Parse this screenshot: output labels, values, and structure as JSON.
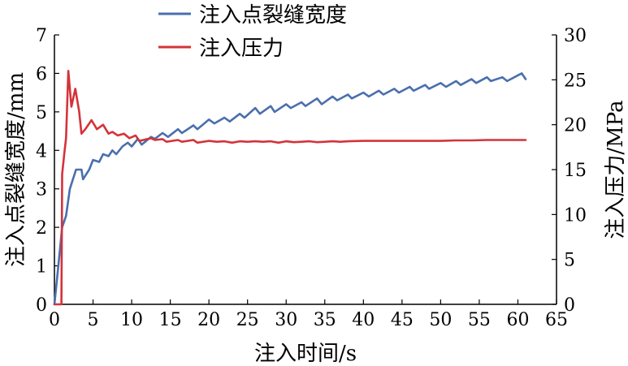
{
  "chart_data": {
    "type": "line",
    "xlabel": "注入时间/s",
    "ylabel_left": "注入点裂缝宽度/mm",
    "ylabel_right": "注入压力/MPa",
    "xlim": [
      0,
      65
    ],
    "ylim_left": [
      0,
      7
    ],
    "ylim_right": [
      0,
      30
    ],
    "x_ticks": [
      "0",
      "5",
      "10",
      "15",
      "20",
      "25",
      "30",
      "35",
      "40",
      "45",
      "50",
      "55",
      "60",
      "65"
    ],
    "y_left_ticks": [
      "0",
      "1",
      "2",
      "3",
      "4",
      "5",
      "6",
      "7"
    ],
    "y_right_ticks": [
      "0",
      "5",
      "10",
      "15",
      "20",
      "25",
      "30"
    ],
    "grid": false,
    "legend_position": "top-center",
    "series": [
      {
        "name": "注入点裂缝宽度",
        "axis": "left",
        "color": "#4a6fad",
        "points": [
          [
            0,
            0
          ],
          [
            0.5,
            1.0
          ],
          [
            1.0,
            2.0
          ],
          [
            1.5,
            2.3
          ],
          [
            2,
            3.0
          ],
          [
            2.8,
            3.5
          ],
          [
            3.5,
            3.5
          ],
          [
            3.7,
            3.25
          ],
          [
            4.5,
            3.5
          ],
          [
            5,
            3.75
          ],
          [
            5.8,
            3.7
          ],
          [
            6.3,
            3.9
          ],
          [
            7,
            3.85
          ],
          [
            7.5,
            4.0
          ],
          [
            8,
            3.9
          ],
          [
            8.8,
            4.1
          ],
          [
            9.5,
            4.2
          ],
          [
            10,
            4.1
          ],
          [
            10.8,
            4.3
          ],
          [
            11.3,
            4.15
          ],
          [
            12.5,
            4.35
          ],
          [
            13,
            4.3
          ],
          [
            14,
            4.45
          ],
          [
            14.7,
            4.35
          ],
          [
            16,
            4.55
          ],
          [
            16.5,
            4.45
          ],
          [
            18,
            4.65
          ],
          [
            18.5,
            4.55
          ],
          [
            20,
            4.8
          ],
          [
            20.7,
            4.7
          ],
          [
            22,
            4.85
          ],
          [
            22.7,
            4.75
          ],
          [
            24,
            4.95
          ],
          [
            24.6,
            4.85
          ],
          [
            26,
            5.1
          ],
          [
            26.6,
            4.95
          ],
          [
            28,
            5.15
          ],
          [
            28.5,
            5.0
          ],
          [
            30,
            5.2
          ],
          [
            30.6,
            5.1
          ],
          [
            32,
            5.25
          ],
          [
            32.5,
            5.15
          ],
          [
            34,
            5.35
          ],
          [
            34.6,
            5.2
          ],
          [
            36,
            5.4
          ],
          [
            36.6,
            5.3
          ],
          [
            38,
            5.45
          ],
          [
            38.5,
            5.35
          ],
          [
            40,
            5.5
          ],
          [
            40.7,
            5.4
          ],
          [
            42,
            5.55
          ],
          [
            42.6,
            5.45
          ],
          [
            44,
            5.6
          ],
          [
            44.6,
            5.5
          ],
          [
            46,
            5.65
          ],
          [
            46.5,
            5.55
          ],
          [
            48,
            5.7
          ],
          [
            48.5,
            5.6
          ],
          [
            50,
            5.75
          ],
          [
            50.7,
            5.65
          ],
          [
            52,
            5.8
          ],
          [
            52.6,
            5.7
          ],
          [
            54,
            5.85
          ],
          [
            54.6,
            5.75
          ],
          [
            56,
            5.9
          ],
          [
            56.5,
            5.8
          ],
          [
            58,
            5.9
          ],
          [
            58.6,
            5.8
          ],
          [
            60,
            5.95
          ],
          [
            60.5,
            6.0
          ],
          [
            61,
            5.85
          ]
        ]
      },
      {
        "name": "注入压力",
        "axis": "right",
        "color": "#d4333a",
        "points": [
          [
            0,
            0
          ],
          [
            0.9,
            0
          ],
          [
            1.0,
            14.5
          ],
          [
            1.3,
            17.0
          ],
          [
            1.5,
            18.5
          ],
          [
            1.8,
            26.0
          ],
          [
            2.2,
            22.0
          ],
          [
            2.7,
            24.0
          ],
          [
            3.2,
            21.5
          ],
          [
            3.5,
            19.0
          ],
          [
            4,
            19.5
          ],
          [
            4.8,
            20.5
          ],
          [
            5.5,
            19.5
          ],
          [
            6.3,
            20.0
          ],
          [
            7,
            19.0
          ],
          [
            7.5,
            19.2
          ],
          [
            8.2,
            18.8
          ],
          [
            9,
            19.0
          ],
          [
            9.7,
            18.5
          ],
          [
            10.5,
            18.8
          ],
          [
            11,
            18.2
          ],
          [
            12.5,
            18.5
          ],
          [
            13,
            18.3
          ],
          [
            14,
            18.4
          ],
          [
            14.5,
            18.1
          ],
          [
            16,
            18.3
          ],
          [
            16.5,
            18.1
          ],
          [
            18,
            18.3
          ],
          [
            18.5,
            18.0
          ],
          [
            20,
            18.2
          ],
          [
            21,
            18.1
          ],
          [
            22,
            18.15
          ],
          [
            23,
            18.0
          ],
          [
            24,
            18.15
          ],
          [
            25,
            18.1
          ],
          [
            26,
            18.15
          ],
          [
            27,
            18.1
          ],
          [
            28,
            18.15
          ],
          [
            29,
            18.0
          ],
          [
            30,
            18.15
          ],
          [
            31,
            18.05
          ],
          [
            32,
            18.1
          ],
          [
            33,
            18.15
          ],
          [
            34,
            18.05
          ],
          [
            35,
            18.1
          ],
          [
            36,
            18.15
          ],
          [
            37,
            18.1
          ],
          [
            38,
            18.15
          ],
          [
            40,
            18.2
          ],
          [
            42,
            18.2
          ],
          [
            44,
            18.2
          ],
          [
            46,
            18.2
          ],
          [
            48,
            18.2
          ],
          [
            50,
            18.2
          ],
          [
            52,
            18.25
          ],
          [
            54,
            18.25
          ],
          [
            56,
            18.3
          ],
          [
            58,
            18.3
          ],
          [
            60,
            18.3
          ],
          [
            61,
            18.3
          ]
        ]
      }
    ]
  }
}
